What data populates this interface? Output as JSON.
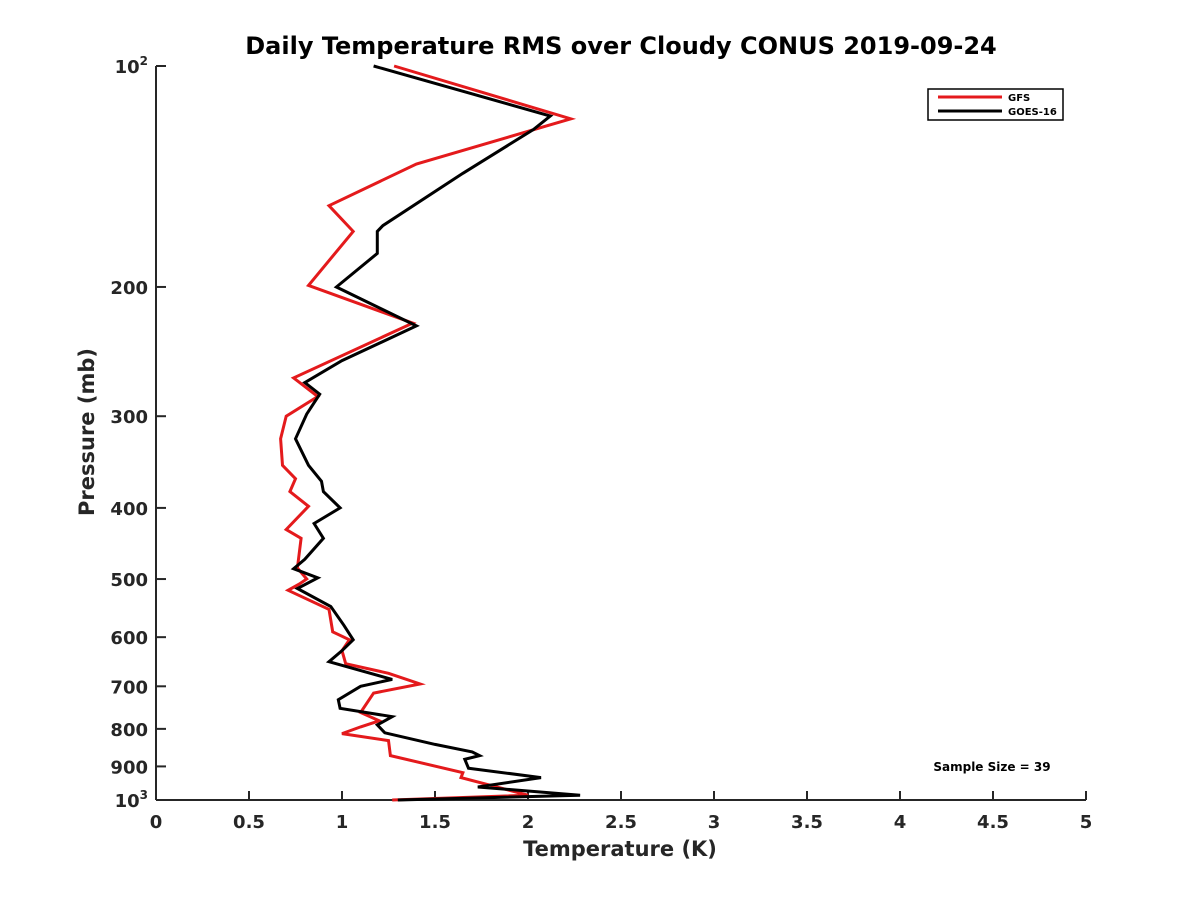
{
  "chart_data": {
    "type": "line",
    "title": "Daily Temperature RMS over Cloudy CONUS 2019-09-24",
    "xlabel": "Temperature (K)",
    "ylabel": "Pressure (mb)",
    "xlim": [
      0,
      5
    ],
    "ylim": [
      100,
      1000
    ],
    "y_scale": "log",
    "y_reversed": true,
    "x_ticks": [
      "0",
      "0.5",
      "1",
      "1.5",
      "2",
      "2.5",
      "3",
      "3.5",
      "4",
      "4.5",
      "5"
    ],
    "x_tick_values": [
      0,
      0.5,
      1,
      1.5,
      2,
      2.5,
      3,
      3.5,
      4,
      4.5,
      5
    ],
    "y_ticks": [
      {
        "value": 100,
        "base": "10",
        "exp": "2",
        "label": ""
      },
      {
        "value": 200,
        "label": "200"
      },
      {
        "value": 300,
        "label": "300"
      },
      {
        "value": 400,
        "label": "400"
      },
      {
        "value": 500,
        "label": "500"
      },
      {
        "value": 600,
        "label": "600"
      },
      {
        "value": 700,
        "label": "700"
      },
      {
        "value": 800,
        "label": "800"
      },
      {
        "value": 900,
        "label": "900"
      },
      {
        "value": 1000,
        "base": "10",
        "exp": "3",
        "label": ""
      }
    ],
    "legend_position": "top-right",
    "annotation": "Sample Size = 39",
    "series": [
      {
        "name": "GFS",
        "color": "#e41a1c",
        "points": [
          [
            1.28,
            100
          ],
          [
            2.23,
            118
          ],
          [
            1.4,
            136
          ],
          [
            0.93,
            155
          ],
          [
            1.06,
            168
          ],
          [
            0.82,
            199
          ],
          [
            1.38,
            224
          ],
          [
            0.74,
            266
          ],
          [
            0.87,
            282
          ],
          [
            0.7,
            300
          ],
          [
            0.67,
            322
          ],
          [
            0.68,
            350
          ],
          [
            0.75,
            365
          ],
          [
            0.72,
            380
          ],
          [
            0.82,
            398
          ],
          [
            0.7,
            428
          ],
          [
            0.78,
            440
          ],
          [
            0.76,
            483
          ],
          [
            0.81,
            500
          ],
          [
            0.77,
            508
          ],
          [
            0.71,
            518
          ],
          [
            0.93,
            550
          ],
          [
            0.95,
            590
          ],
          [
            1.04,
            605
          ],
          [
            1.0,
            626
          ],
          [
            1.02,
            652
          ],
          [
            1.25,
            672
          ],
          [
            1.42,
            695
          ],
          [
            1.17,
            715
          ],
          [
            1.1,
            760
          ],
          [
            1.2,
            780
          ],
          [
            1.1,
            795
          ],
          [
            1.0,
            812
          ],
          [
            1.25,
            830
          ],
          [
            1.26,
            870
          ],
          [
            1.65,
            918
          ],
          [
            1.64,
            932
          ],
          [
            2.0,
            985
          ],
          [
            1.27,
            1000
          ]
        ]
      },
      {
        "name": "GOES-16",
        "color": "#000000",
        "points": [
          [
            1.17,
            100
          ],
          [
            2.12,
            117
          ],
          [
            2.03,
            122
          ],
          [
            1.65,
            140
          ],
          [
            1.22,
            165
          ],
          [
            1.19,
            168
          ],
          [
            1.19,
            180
          ],
          [
            0.97,
            200
          ],
          [
            1.4,
            226
          ],
          [
            1.0,
            252
          ],
          [
            0.8,
            270
          ],
          [
            0.88,
            280
          ],
          [
            0.81,
            298
          ],
          [
            0.75,
            322
          ],
          [
            0.82,
            350
          ],
          [
            0.89,
            368
          ],
          [
            0.9,
            380
          ],
          [
            0.99,
            400
          ],
          [
            0.85,
            420
          ],
          [
            0.9,
            440
          ],
          [
            0.8,
            470
          ],
          [
            0.74,
            484
          ],
          [
            0.87,
            498
          ],
          [
            0.76,
            515
          ],
          [
            0.94,
            545
          ],
          [
            1.01,
            578
          ],
          [
            1.06,
            605
          ],
          [
            1.0,
            626
          ],
          [
            0.93,
            648
          ],
          [
            1.27,
            685
          ],
          [
            1.1,
            700
          ],
          [
            0.98,
            730
          ],
          [
            0.99,
            750
          ],
          [
            1.27,
            770
          ],
          [
            1.19,
            790
          ],
          [
            1.23,
            810
          ],
          [
            1.5,
            840
          ],
          [
            1.7,
            860
          ],
          [
            1.74,
            870
          ],
          [
            1.66,
            880
          ],
          [
            1.68,
            905
          ],
          [
            2.07,
            932
          ],
          [
            1.73,
            960
          ],
          [
            2.28,
            985
          ],
          [
            1.3,
            1000
          ]
        ]
      }
    ]
  }
}
